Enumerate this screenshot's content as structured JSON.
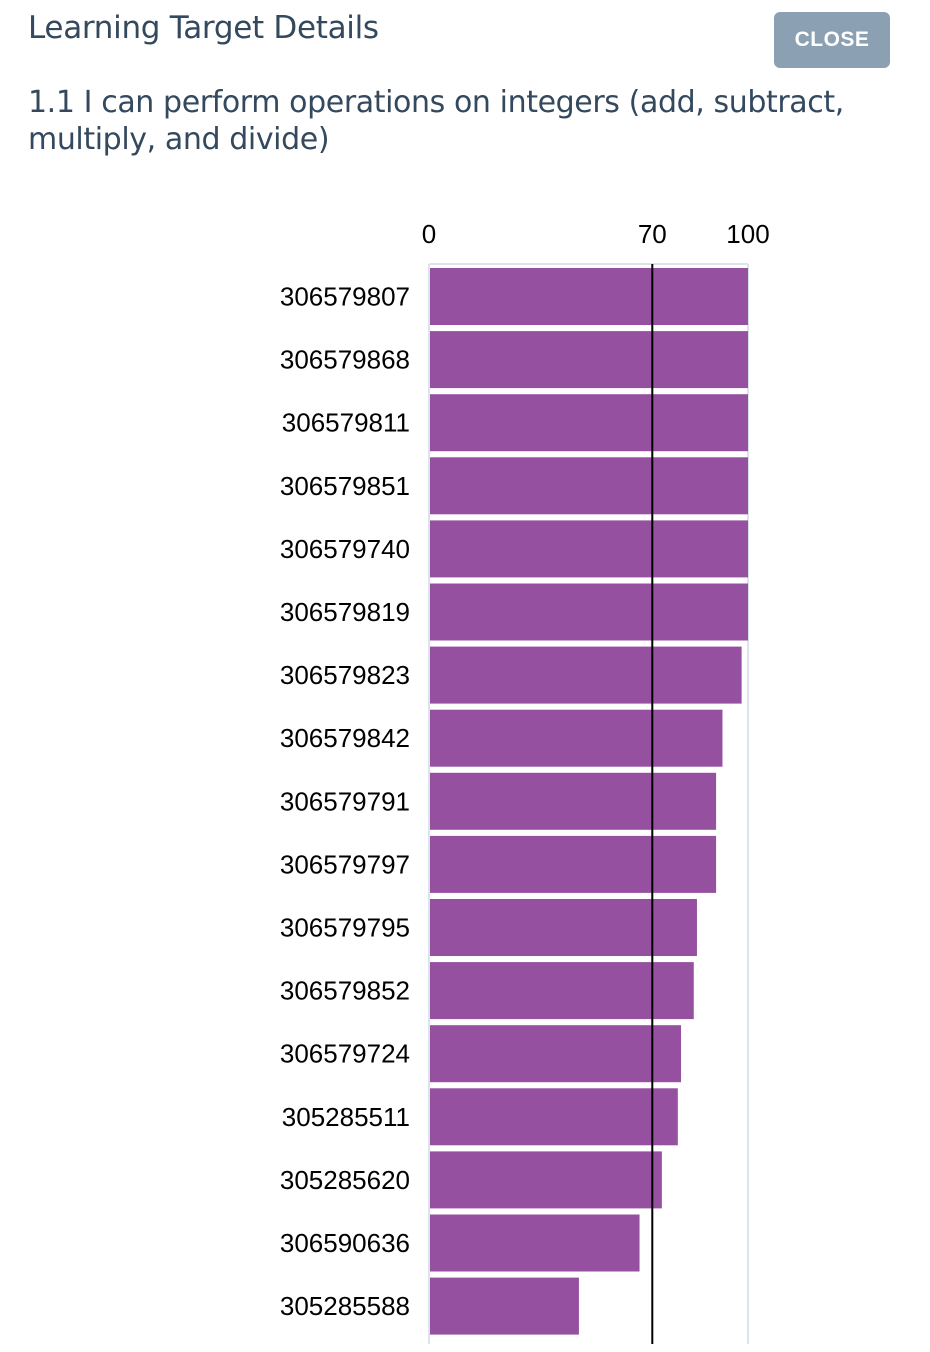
{
  "modal": {
    "title": "Learning Target Details",
    "close_label": "CLOSE",
    "target_text": "1.1 I can perform operations on integers (add, subtract, multiply, and divide)"
  },
  "colors": {
    "bar": "#95519f",
    "threshold_line": "#000000",
    "axis": "#dde3ea",
    "close_button": "#8ba1b3",
    "heading_text": "#34495e"
  },
  "chart_data": {
    "type": "bar",
    "orientation": "horizontal",
    "xlim": [
      0,
      100
    ],
    "x_ticks": [
      "0",
      "70",
      "100"
    ],
    "threshold": 70,
    "categories": [
      "306579807",
      "306579868",
      "306579811",
      "306579851",
      "306579740",
      "306579819",
      "306579823",
      "306579842",
      "306579791",
      "306579797",
      "306579795",
      "306579852",
      "306579724",
      "305285511",
      "305285620",
      "306590636",
      "305285588"
    ],
    "values": [
      100,
      100,
      100,
      100,
      100,
      100,
      98,
      92,
      90,
      90,
      84,
      83,
      79,
      78,
      73,
      66,
      47
    ],
    "grid": false,
    "legend": "none"
  }
}
